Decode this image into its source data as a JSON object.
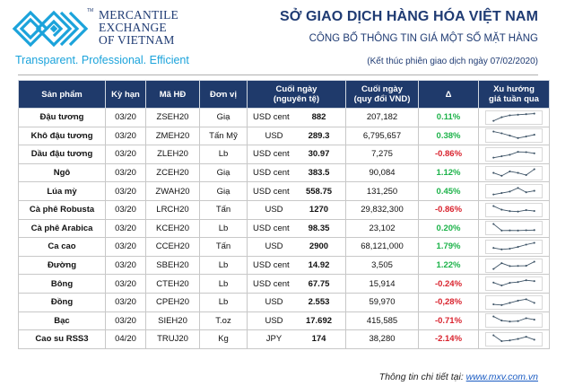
{
  "header": {
    "logo_lines": [
      "MERCANTILE",
      "EXCHANGE",
      "OF VIETNAM"
    ],
    "logo_tm": "TM",
    "tagline": "Transparent. Professional. Efficient",
    "title": "SỞ GIAO DỊCH HÀNG HÓA VIỆT NAM",
    "subtitle": "CÔNG BỐ THÔNG TIN GIÁ MỘT SỐ MẶT HÀNG",
    "session_note": "(Kết thúc phiên giao dịch ngày 07/02/2020)"
  },
  "colors": {
    "brand_navy": "#1f3b73",
    "header_bg": "#1f3a6b",
    "tagline_blue": "#1ba3db",
    "up_green": "#1db34a",
    "down_red": "#d9232e",
    "sparkline": "#3d5366"
  },
  "table": {
    "columns": [
      {
        "label": "Sản phẩm"
      },
      {
        "label": "Kỳ hạn"
      },
      {
        "label": "Mã HĐ"
      },
      {
        "label": "Đơn vị"
      },
      {
        "label": "Cuối ngày",
        "label2": "(nguyên tệ)"
      },
      {
        "label": "Cuối ngày",
        "label2": "(quy đổi VND)"
      },
      {
        "label": "Δ"
      },
      {
        "label": "Xu hướng",
        "label2": "giá tuần qua"
      }
    ],
    "rows": [
      {
        "product": "Đậu tương",
        "term": "03/20",
        "code": "ZSEH20",
        "unit": "Giạ",
        "currency": "USD cent",
        "close_native": "882",
        "close_vnd": "207,182",
        "delta": "0.11%",
        "direction": "up",
        "trend": [
          1,
          3.5,
          4.8,
          5.2,
          5.6,
          6
        ]
      },
      {
        "product": "Khô đậu tương",
        "term": "03/20",
        "code": "ZMEH20",
        "unit": "Tấn Mỹ",
        "currency": "USD",
        "close_native": "289.3",
        "close_vnd": "6,795,657",
        "delta": "0.38%",
        "direction": "up",
        "trend": [
          6,
          4.8,
          3.2,
          1.5,
          2.6,
          3.8
        ]
      },
      {
        "product": "Dầu đậu tương",
        "term": "03/20",
        "code": "ZLEH20",
        "unit": "Lb",
        "currency": "USD cent",
        "close_native": "30.97",
        "close_vnd": "7,275",
        "delta": "-0.86%",
        "direction": "down",
        "trend": [
          1,
          2,
          3,
          5,
          4.8,
          4
        ]
      },
      {
        "product": "Ngô",
        "term": "03/20",
        "code": "ZCEH20",
        "unit": "Giạ",
        "currency": "USD cent",
        "close_native": "383.5",
        "close_vnd": "90,084",
        "delta": "1.12%",
        "direction": "up",
        "trend": [
          3.5,
          1.5,
          4.5,
          3.5,
          2,
          6
        ]
      },
      {
        "product": "Lúa mỳ",
        "term": "03/20",
        "code": "ZWAH20",
        "unit": "Giạ",
        "currency": "USD cent",
        "close_native": "558.75",
        "close_vnd": "131,250",
        "delta": "0.45%",
        "direction": "up",
        "trend": [
          1,
          2,
          3,
          5.5,
          2.5,
          3.5
        ]
      },
      {
        "product": "Cà phê Robusta",
        "term": "03/20",
        "code": "LRCH20",
        "unit": "Tấn",
        "currency": "USD",
        "close_native": "1270",
        "close_vnd": "29,832,300",
        "delta": "-0.86%",
        "direction": "down",
        "trend": [
          6,
          3.5,
          2.5,
          2.2,
          3.2,
          2.6
        ]
      },
      {
        "product": "Cà phê Arabica",
        "term": "03/20",
        "code": "KCEH20",
        "unit": "Lb",
        "currency": "USD cent",
        "close_native": "98.35",
        "close_vnd": "23,102",
        "delta": "0.20%",
        "direction": "up",
        "trend": [
          6,
          1.5,
          1.6,
          1.5,
          1.7,
          1.8
        ]
      },
      {
        "product": "Ca cao",
        "term": "03/20",
        "code": "CCEH20",
        "unit": "Tấn",
        "currency": "USD",
        "close_native": "2900",
        "close_vnd": "68,121,000",
        "delta": "1.79%",
        "direction": "up",
        "trend": [
          2.5,
          1.5,
          2,
          3.2,
          4.8,
          6
        ]
      },
      {
        "product": "Đường",
        "term": "03/20",
        "code": "SBEH20",
        "unit": "Lb",
        "currency": "USD cent",
        "close_native": "14.92",
        "close_vnd": "3,505",
        "delta": "1.22%",
        "direction": "up",
        "trend": [
          1,
          5,
          3,
          3.1,
          3.2,
          6
        ]
      },
      {
        "product": "Bông",
        "term": "03/20",
        "code": "CTEH20",
        "unit": "Lb",
        "currency": "USD cent",
        "close_native": "67.75",
        "close_vnd": "15,914",
        "delta": "-0.24%",
        "direction": "down",
        "trend": [
          4,
          2,
          3.8,
          4.4,
          5.6,
          5
        ]
      },
      {
        "product": "Đồng",
        "term": "03/20",
        "code": "CPEH20",
        "unit": "Lb",
        "currency": "USD",
        "close_native": "2.553",
        "close_vnd": "59,970",
        "delta": "-0,28%",
        "direction": "down",
        "trend": [
          2,
          1.5,
          3,
          4.5,
          5.5,
          3
        ]
      },
      {
        "product": "Bạc",
        "term": "03/20",
        "code": "SIEH20",
        "unit": "T.oz",
        "currency": "USD",
        "close_native": "17.692",
        "close_vnd": "415,585",
        "delta": "-0.71%",
        "direction": "down",
        "trend": [
          6,
          3.2,
          2.5,
          2.8,
          4.8,
          3.8
        ]
      },
      {
        "product": "Cao su RSS3",
        "term": "04/20",
        "code": "TRUJ20",
        "unit": "Kg",
        "currency": "JPY",
        "close_native": "174",
        "close_vnd": "38,280",
        "delta": "-2.14%",
        "direction": "down",
        "trend": [
          6,
          2,
          2.5,
          3.5,
          5,
          3
        ]
      }
    ]
  },
  "footer": {
    "label": "Thông tin chi tiết tại:",
    "link": "www.mxv.com.vn"
  }
}
